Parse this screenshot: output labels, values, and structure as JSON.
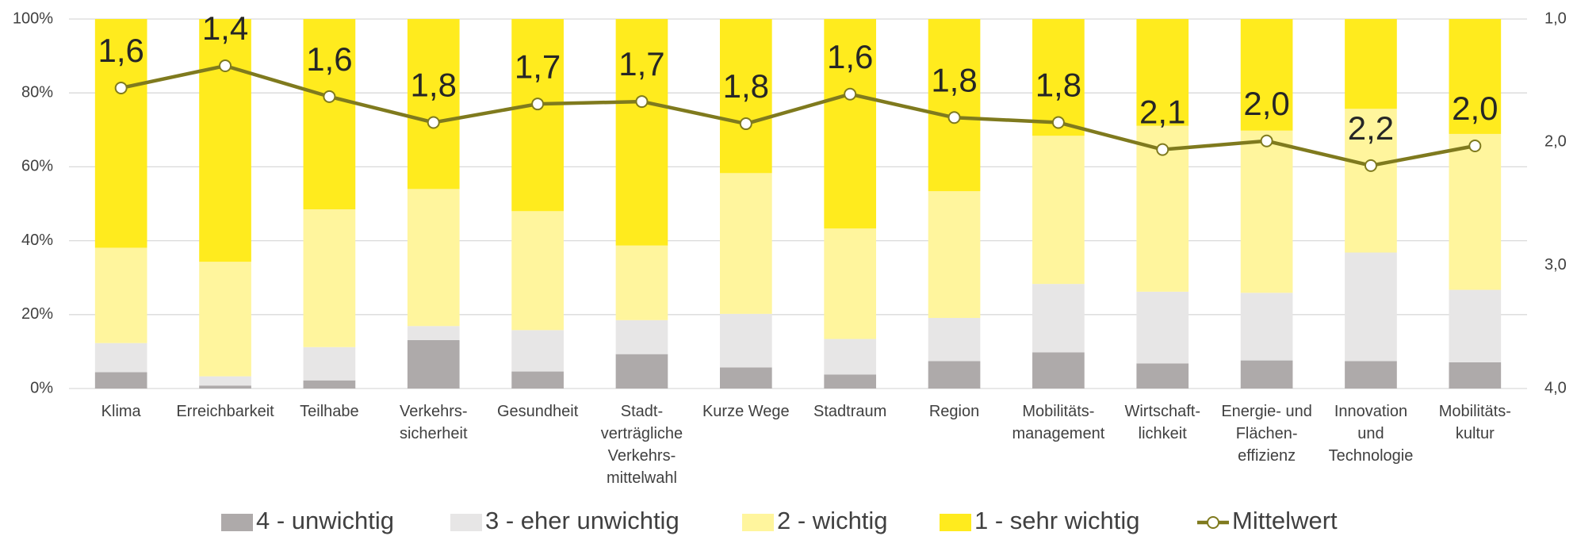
{
  "chart_data": {
    "type": "bar",
    "stacked": true,
    "categories": [
      "Klima",
      "Erreichbarkeit",
      "Teilhabe",
      "Verkehrs-\nsicherheit",
      "Gesundheit",
      "Stadt-\nverträgliche\nVerkehrs-\nmittelwahl",
      "Kurze Wege",
      "Stadtraum",
      "Region",
      "Mobilitäts-\nmanagement",
      "Wirtschaft-\nlichkeit",
      "Energie- und\nFlächen-\neffizienz",
      "Innovation\nund\nTechnologie",
      "Mobilitäts-\nkultur"
    ],
    "series": [
      {
        "name": "4 - unwichtig",
        "color": "#aeaaaa",
        "values": [
          4.4,
          0.8,
          2.2,
          13.1,
          4.6,
          9.3,
          5.7,
          3.8,
          7.4,
          9.8,
          6.8,
          7.6,
          7.4,
          7.1
        ]
      },
      {
        "name": "3 - eher unwichtig",
        "color": "#e7e6e6",
        "values": [
          7.9,
          2.5,
          9.0,
          3.8,
          11.2,
          9.2,
          14.5,
          9.6,
          11.7,
          18.5,
          19.4,
          18.3,
          29.4,
          19.6
        ]
      },
      {
        "name": "2 - wichtig",
        "color": "#fff59d",
        "values": [
          25.8,
          31.0,
          37.3,
          37.1,
          32.2,
          20.2,
          38.1,
          29.9,
          34.3,
          40.1,
          44.9,
          43.9,
          38.9,
          42.2
        ]
      },
      {
        "name": "1 - sehr wichtig",
        "color": "#ffeb1e",
        "values": [
          61.9,
          65.7,
          51.5,
          46.0,
          52.0,
          61.3,
          41.7,
          56.7,
          46.6,
          31.6,
          28.9,
          30.2,
          24.3,
          31.1
        ]
      },
      {
        "name": "Mittelwert",
        "type": "line",
        "axis": "y2",
        "color": "#7f7a1e",
        "values": [
          1.56,
          1.38,
          1.63,
          1.84,
          1.69,
          1.67,
          1.85,
          1.61,
          1.8,
          1.84,
          2.06,
          1.99,
          2.19,
          2.03
        ],
        "value_labels": [
          "1,6",
          "1,4",
          "1,6",
          "1,8",
          "1,7",
          "1,7",
          "1,8",
          "1,6",
          "1,8",
          "1,8",
          "2,1",
          "2,0",
          "2,2",
          "2,0"
        ]
      }
    ],
    "ylim": [
      0,
      100
    ],
    "yticks": [
      {
        "value": 0,
        "label": "0%"
      },
      {
        "value": 20,
        "label": "20%"
      },
      {
        "value": 40,
        "label": "40%"
      },
      {
        "value": 60,
        "label": "60%"
      },
      {
        "value": 80,
        "label": "80%"
      },
      {
        "value": 100,
        "label": "100%"
      }
    ],
    "y2lim": [
      4,
      1
    ],
    "y2ticks": [
      {
        "value": 1,
        "label": "1,0"
      },
      {
        "value": 2,
        "label": "2,0"
      },
      {
        "value": 3,
        "label": "3,0"
      },
      {
        "value": 4,
        "label": "4,0"
      }
    ],
    "grid": true,
    "legend": "bottom"
  }
}
